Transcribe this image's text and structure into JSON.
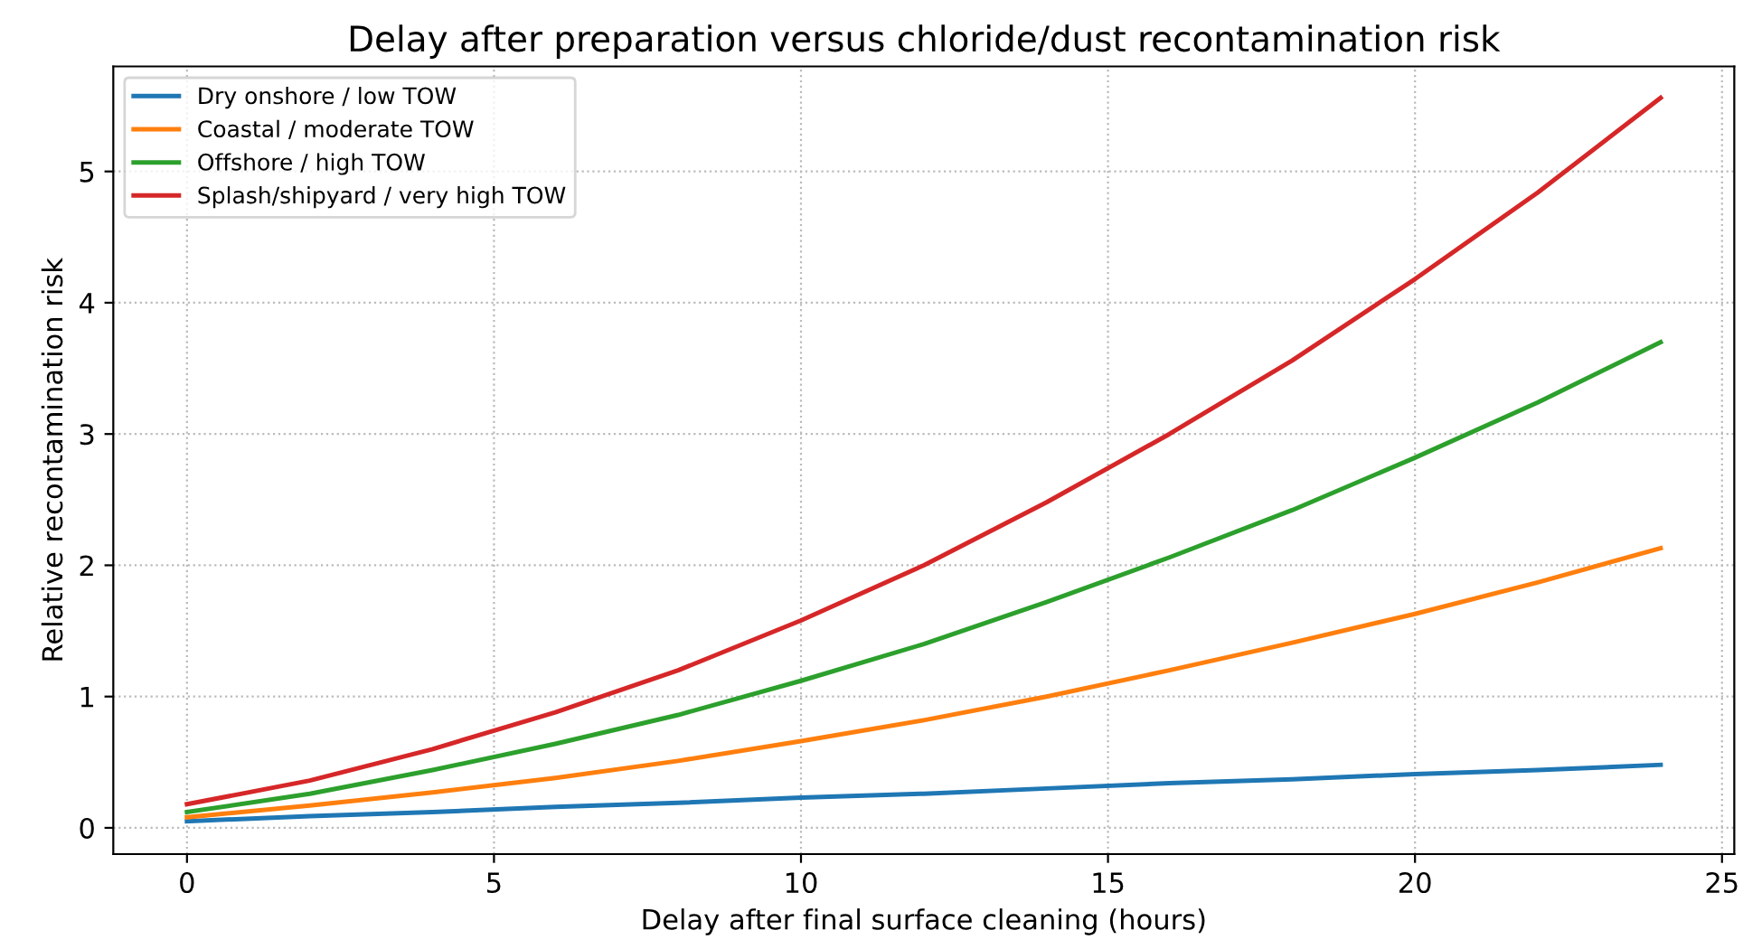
{
  "chart_data": {
    "type": "line",
    "title": "Delay after preparation versus chloride/dust recontamination risk",
    "xlabel": "Delay after final surface cleaning (hours)",
    "ylabel": "Relative recontamination risk",
    "x": [
      0,
      2,
      4,
      6,
      8,
      10,
      12,
      14,
      16,
      18,
      20,
      22,
      24
    ],
    "series": [
      {
        "name": "Dry onshore / low TOW",
        "color": "#1f77b4",
        "values": [
          0.05,
          0.09,
          0.12,
          0.16,
          0.19,
          0.23,
          0.26,
          0.3,
          0.34,
          0.37,
          0.41,
          0.44,
          0.48
        ]
      },
      {
        "name": "Coastal / moderate TOW",
        "color": "#ff7f0e",
        "values": [
          0.08,
          0.17,
          0.27,
          0.38,
          0.51,
          0.66,
          0.82,
          1.0,
          1.2,
          1.41,
          1.63,
          1.87,
          2.13
        ]
      },
      {
        "name": "Offshore / high TOW",
        "color": "#2ca02c",
        "values": [
          0.12,
          0.26,
          0.44,
          0.64,
          0.86,
          1.12,
          1.4,
          1.72,
          2.06,
          2.42,
          2.82,
          3.24,
          3.7
        ]
      },
      {
        "name": "Splash/shipyard / very high TOW",
        "color": "#d62728",
        "values": [
          0.18,
          0.36,
          0.6,
          0.88,
          1.2,
          1.58,
          2.0,
          2.48,
          3.0,
          3.56,
          4.18,
          4.84,
          5.56
        ]
      }
    ],
    "xlim": [
      -1.2,
      25.2
    ],
    "xticks": [
      0,
      5,
      10,
      15,
      20,
      25
    ],
    "ylim": [
      -0.2,
      5.8
    ],
    "yticks": [
      0,
      1,
      2,
      3,
      4,
      5
    ],
    "grid": true,
    "legend": "top left",
    "line_style": "solid",
    "marker": "none"
  }
}
